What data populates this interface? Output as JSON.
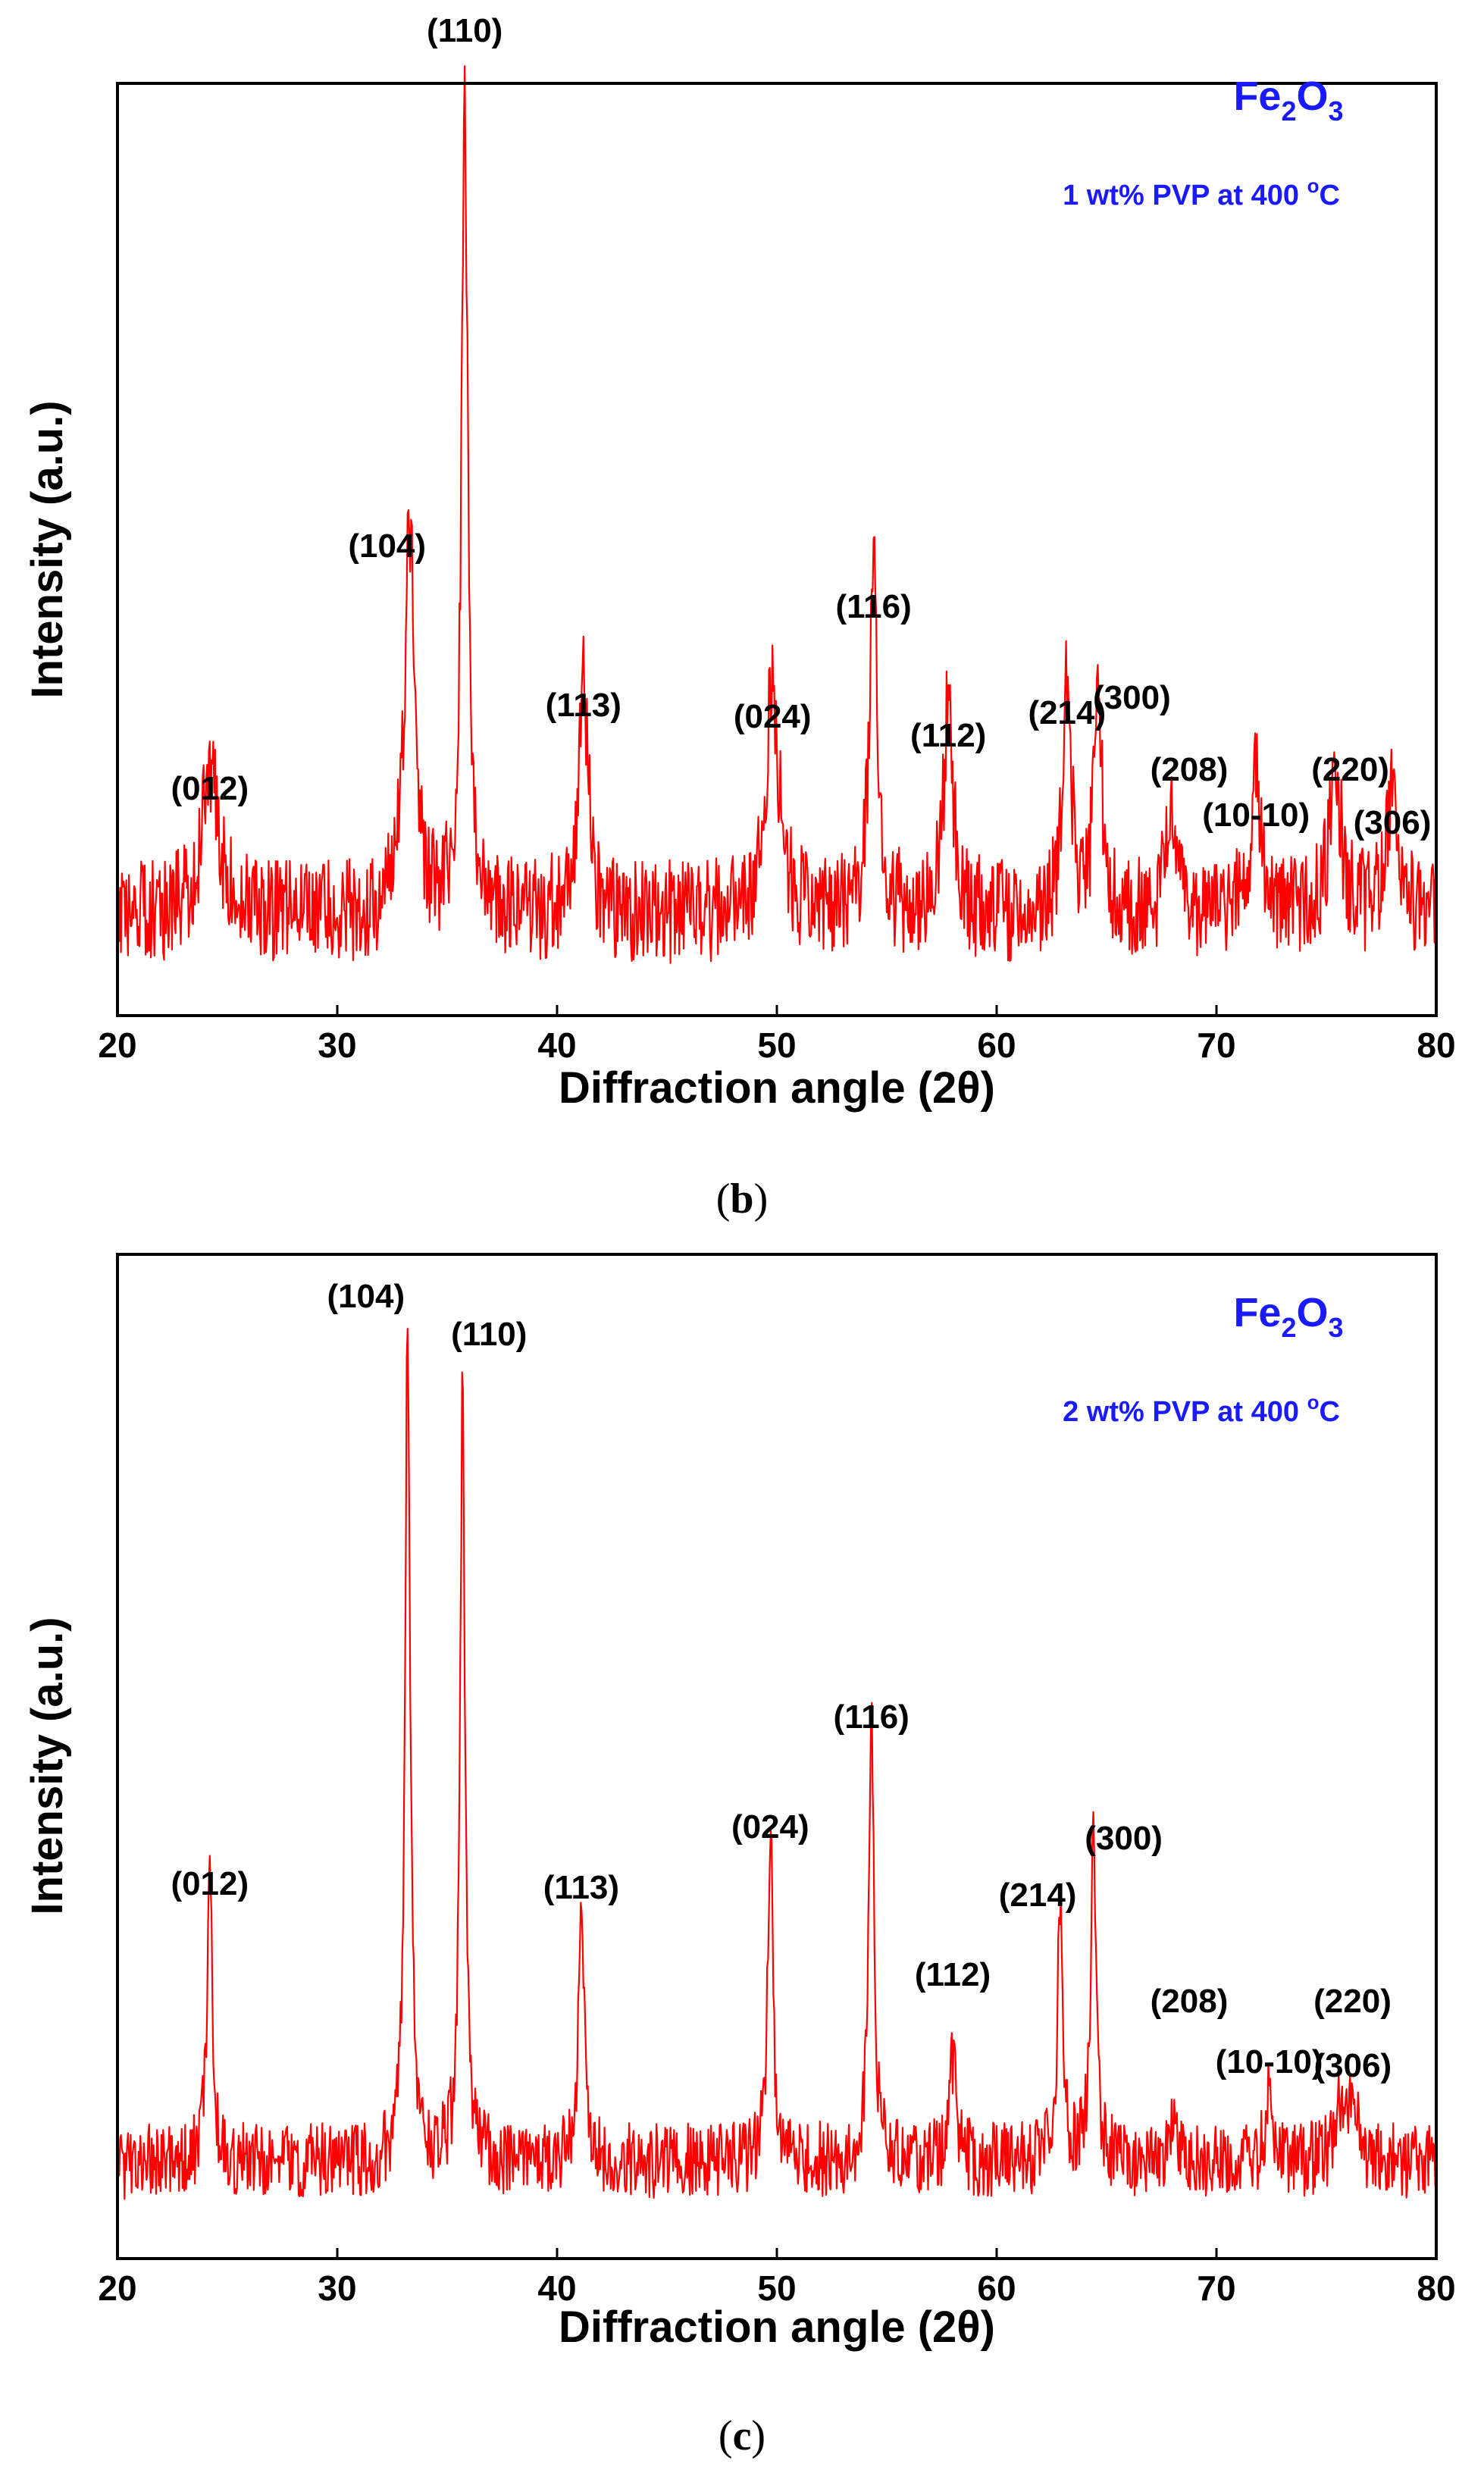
{
  "colors": {
    "trace": "#ff0000",
    "annotation": "#1a1aff",
    "axis": "#000000"
  },
  "chart_data": [
    {
      "type": "line",
      "panel": "b",
      "xlabel": "Diffraction angle (2θ)",
      "ylabel": "Intensity (a.u.)",
      "xlim": [
        20,
        80
      ],
      "ylim": [
        0,
        100
      ],
      "x_ticks": [
        "20",
        "30",
        "40",
        "50",
        "60",
        "70",
        "80"
      ],
      "compound": {
        "base": "Fe",
        "sub1": "2",
        "mid": "O",
        "sub2": "3"
      },
      "condition": {
        "text": "1 wt% PVP at 400 ",
        "sup": "o",
        "unit": "C"
      },
      "baseline": 8,
      "noise_amplitude": 6,
      "peaks": [
        {
          "label": "(012)",
          "position": 24.2,
          "intensity": 17,
          "width": 0.9
        },
        {
          "label": "(104)",
          "position": 33.3,
          "intensity": 45,
          "width": 0.55
        },
        {
          "label": "(110)",
          "position": 35.8,
          "intensity": 92,
          "width": 0.35
        },
        {
          "label": "(113)",
          "position": 41.2,
          "intensity": 28,
          "width": 0.5
        },
        {
          "label": "(024)",
          "position": 49.8,
          "intensity": 27,
          "width": 0.7
        },
        {
          "label": "(116)",
          "position": 54.4,
          "intensity": 39,
          "width": 0.45
        },
        {
          "label": "(112)",
          "position": 57.8,
          "intensity": 25,
          "width": 0.5
        },
        {
          "label": "(214)",
          "position": 63.2,
          "intensity": 27,
          "width": 0.45
        },
        {
          "label": "(300)",
          "position": 64.6,
          "intensity": 28,
          "width": 0.4
        },
        {
          "label": "(208)",
          "position": 68.0,
          "intensity": 13,
          "width": 0.6
        },
        {
          "label": "(10-10)",
          "position": 71.8,
          "intensity": 15,
          "width": 0.6
        },
        {
          "label": "(220)",
          "position": 75.4,
          "intensity": 18,
          "width": 0.6
        },
        {
          "label": "(306)",
          "position": 78.0,
          "intensity": 14,
          "width": 0.6
        }
      ]
    },
    {
      "type": "line",
      "panel": "c",
      "xlabel": "Diffraction angle (2θ)",
      "ylabel": "Intensity (a.u.)",
      "xlim": [
        20,
        80
      ],
      "ylim": [
        0,
        100
      ],
      "x_ticks": [
        "20",
        "30",
        "40",
        "50",
        "60",
        "70",
        "80"
      ],
      "compound": {
        "base": "Fe",
        "sub1": "2",
        "mid": "O",
        "sub2": "3"
      },
      "condition": {
        "text": "2 wt% PVP at 400 ",
        "sup": "o",
        "unit": "C"
      },
      "baseline": 7,
      "noise_amplitude": 4,
      "peaks": [
        {
          "label": "(012)",
          "position": 24.2,
          "intensity": 30,
          "width": 0.3
        },
        {
          "label": "(104)",
          "position": 33.2,
          "intensity": 88,
          "width": 0.28
        },
        {
          "label": "(110)",
          "position": 35.7,
          "intensity": 83,
          "width": 0.26
        },
        {
          "label": "(113)",
          "position": 41.1,
          "intensity": 29,
          "width": 0.28
        },
        {
          "label": "(024)",
          "position": 49.7,
          "intensity": 36,
          "width": 0.28
        },
        {
          "label": "(116)",
          "position": 54.3,
          "intensity": 51,
          "width": 0.28
        },
        {
          "label": "(112)",
          "position": 58.0,
          "intensity": 11,
          "width": 0.35
        },
        {
          "label": "(214)",
          "position": 62.9,
          "intensity": 28,
          "width": 0.3
        },
        {
          "label": "(300)",
          "position": 64.4,
          "intensity": 33,
          "width": 0.3
        },
        {
          "label": "(208)",
          "position": 68.0,
          "intensity": 3,
          "width": 0.5
        },
        {
          "label": "(10-10)",
          "position": 72.4,
          "intensity": 8,
          "width": 0.4
        },
        {
          "label": "(220)",
          "position": 75.5,
          "intensity": 5,
          "width": 0.5
        },
        {
          "label": "(306)",
          "position": 76.2,
          "intensity": 6,
          "width": 0.5
        }
      ]
    }
  ]
}
